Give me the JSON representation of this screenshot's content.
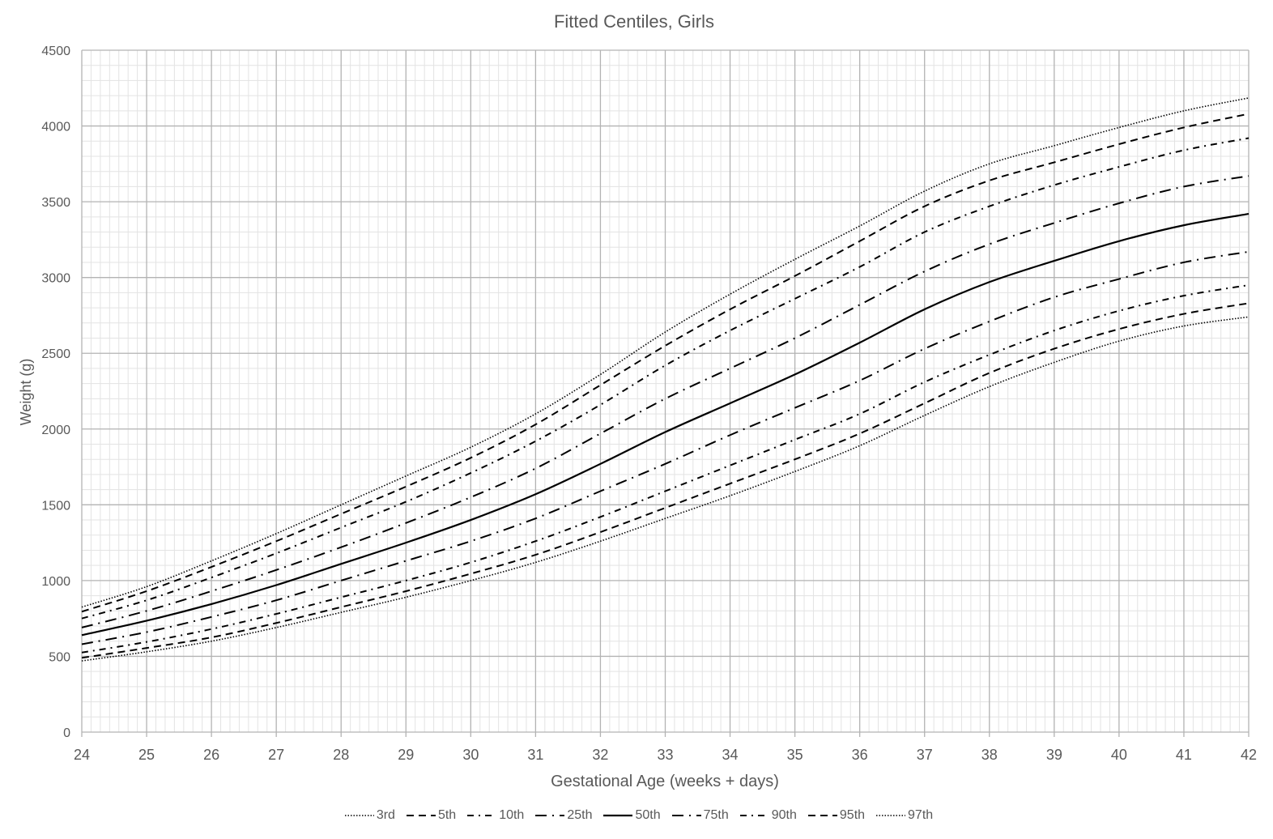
{
  "chart_data": {
    "type": "line",
    "title": "Fitted Centiles, Girls",
    "xlabel": "Gestational Age (weeks + days)",
    "ylabel": "Weight (g)",
    "xlim": [
      24,
      42
    ],
    "ylim": [
      0,
      4500
    ],
    "x_ticks": [
      24,
      25,
      26,
      27,
      28,
      29,
      30,
      31,
      32,
      33,
      34,
      35,
      36,
      37,
      38,
      39,
      40,
      41,
      42
    ],
    "y_ticks": [
      0,
      500,
      1000,
      1500,
      2000,
      2500,
      3000,
      3500,
      4000,
      4500
    ],
    "grid": true,
    "legend_position": "bottom",
    "x": [
      24,
      25,
      26,
      27,
      28,
      29,
      30,
      31,
      32,
      33,
      34,
      35,
      36,
      37,
      38,
      39,
      40,
      41,
      42
    ],
    "series": [
      {
        "name": "3rd",
        "style": "dotted",
        "values": [
          470,
          530,
          600,
          690,
          790,
          890,
          1000,
          1120,
          1260,
          1410,
          1560,
          1720,
          1890,
          2090,
          2280,
          2440,
          2580,
          2680,
          2740
        ]
      },
      {
        "name": "5th",
        "style": "dashed",
        "values": [
          490,
          555,
          625,
          720,
          825,
          930,
          1045,
          1170,
          1320,
          1480,
          1640,
          1800,
          1970,
          2170,
          2370,
          2530,
          2660,
          2760,
          2830
        ]
      },
      {
        "name": "10th",
        "style": "dash-dot",
        "values": [
          525,
          595,
          680,
          780,
          890,
          1000,
          1120,
          1260,
          1420,
          1590,
          1760,
          1930,
          2100,
          2310,
          2490,
          2650,
          2780,
          2880,
          2950
        ]
      },
      {
        "name": "25th",
        "style": "long-dash-dot",
        "values": [
          580,
          660,
          760,
          870,
          1000,
          1130,
          1260,
          1410,
          1590,
          1770,
          1960,
          2140,
          2320,
          2530,
          2710,
          2870,
          2990,
          3100,
          3170
        ]
      },
      {
        "name": "50th",
        "style": "solid",
        "values": [
          640,
          735,
          845,
          970,
          1110,
          1250,
          1400,
          1570,
          1770,
          1980,
          2170,
          2360,
          2570,
          2790,
          2970,
          3110,
          3240,
          3345,
          3420
        ]
      },
      {
        "name": "75th",
        "style": "long-dash-dot",
        "values": [
          690,
          800,
          930,
          1070,
          1220,
          1380,
          1550,
          1740,
          1970,
          2200,
          2400,
          2600,
          2820,
          3040,
          3220,
          3360,
          3490,
          3600,
          3670
        ]
      },
      {
        "name": "90th",
        "style": "dash-dot",
        "values": [
          750,
          870,
          1020,
          1180,
          1350,
          1520,
          1710,
          1920,
          2160,
          2420,
          2650,
          2860,
          3070,
          3300,
          3470,
          3610,
          3730,
          3840,
          3920
        ]
      },
      {
        "name": "95th",
        "style": "dashed",
        "values": [
          795,
          930,
          1090,
          1260,
          1440,
          1620,
          1810,
          2030,
          2290,
          2550,
          2790,
          3010,
          3240,
          3470,
          3640,
          3760,
          3880,
          3990,
          4080
        ]
      },
      {
        "name": "97th",
        "style": "dotted",
        "values": [
          825,
          960,
          1130,
          1310,
          1500,
          1690,
          1880,
          2100,
          2360,
          2640,
          2890,
          3120,
          3340,
          3570,
          3750,
          3870,
          3990,
          4100,
          4185
        ]
      }
    ],
    "colors": {
      "line": "#000000",
      "text": "#595959",
      "major_grid": "#b3b3b3",
      "minor_grid": "#e3e3e3"
    }
  }
}
